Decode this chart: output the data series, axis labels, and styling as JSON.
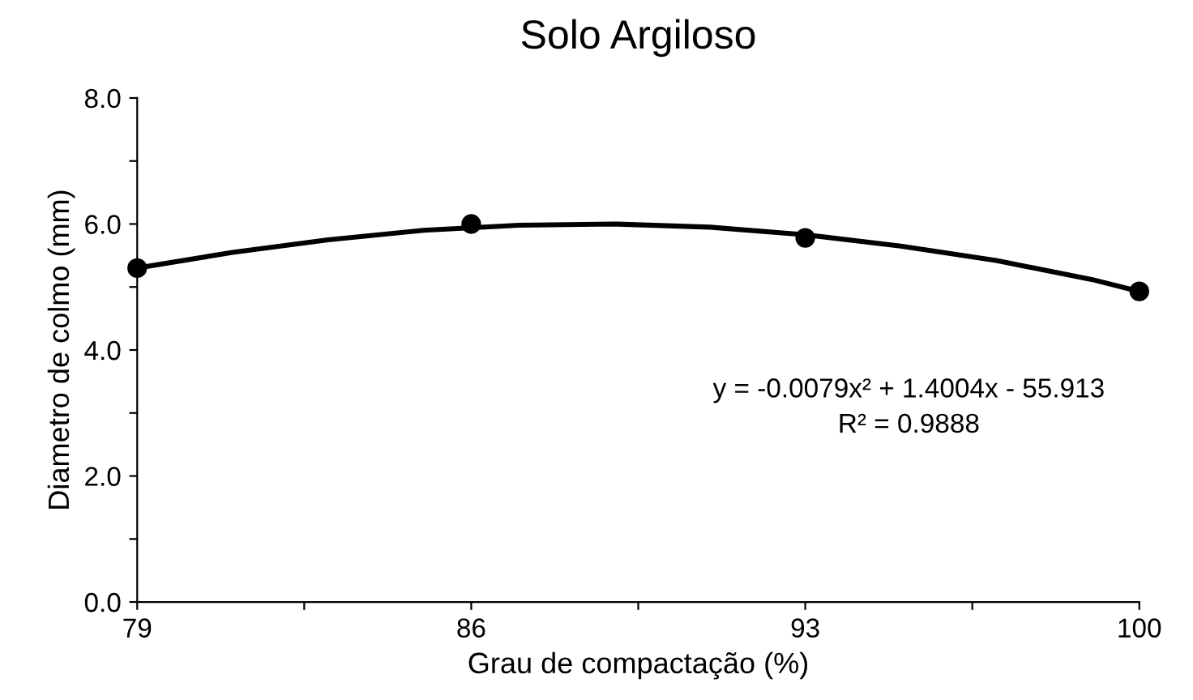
{
  "chart_data": {
    "type": "scatter",
    "title": "Solo Argiloso",
    "xlabel": "Grau de compactação (%)",
    "ylabel": "Diametro de colmo (mm)",
    "x": [
      79,
      86,
      93,
      100
    ],
    "series": [
      {
        "color": "#000000",
        "marker": "circle",
        "values": [
          5.3,
          6.0,
          5.78,
          4.93
        ]
      },
      {
        "type": "line",
        "color": "#000000",
        "marker": "none",
        "line_style": "solid",
        "x": [
          79,
          81,
          83,
          85,
          87,
          89,
          91,
          93,
          95,
          97,
          99,
          100
        ],
        "values": [
          5.3,
          5.55,
          5.75,
          5.9,
          5.98,
          6.0,
          5.95,
          5.83,
          5.65,
          5.42,
          5.12,
          4.93
        ]
      }
    ],
    "xlim": [
      79,
      100
    ],
    "ylim": [
      0,
      8
    ],
    "xticks": [
      79,
      {
        "value": 82.5,
        "label": null
      },
      86,
      {
        "value": 89.5,
        "label": null
      },
      93,
      {
        "value": 96.5,
        "label": null
      },
      100
    ],
    "yticks": [
      {
        "value": 0,
        "label": "0.0"
      },
      {
        "value": 1,
        "label": null
      },
      {
        "value": 2,
        "label": "2.0"
      },
      {
        "value": 3,
        "label": null
      },
      {
        "value": 4,
        "label": "4.0"
      },
      {
        "value": 5,
        "label": null
      },
      {
        "value": 6,
        "label": "6.0"
      },
      {
        "value": 7,
        "label": null
      },
      {
        "value": 8,
        "label": "8.0"
      }
    ],
    "grid": false,
    "annotations": [
      "y = -0.0079x² + 1.4004x - 55.913",
      "R² = 0.9888"
    ]
  }
}
